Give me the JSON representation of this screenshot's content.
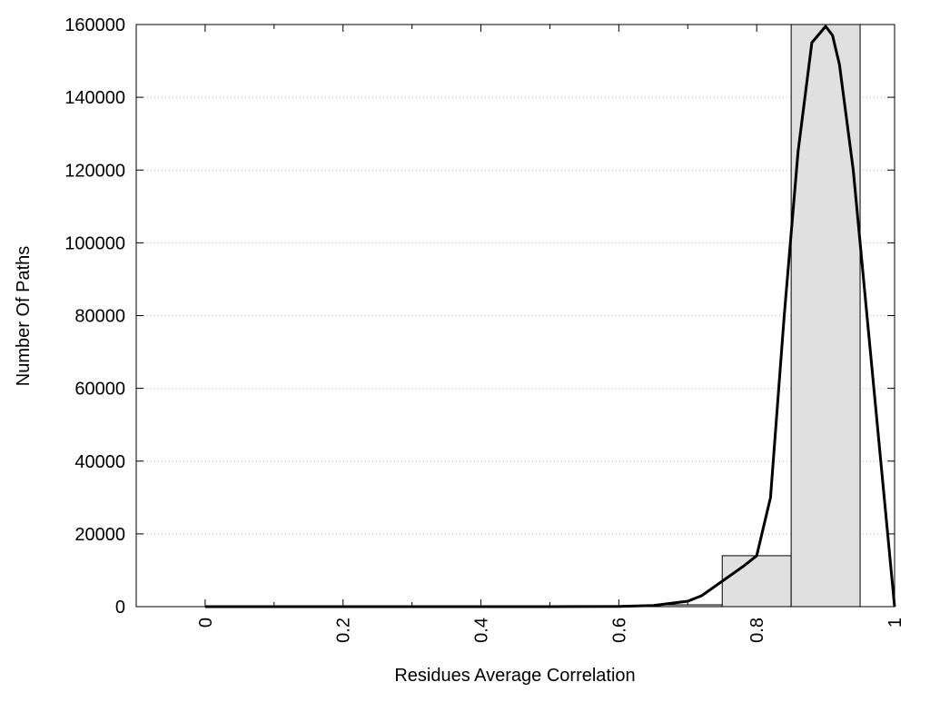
{
  "chart_data": {
    "type": "histogram",
    "x_label": "Residues Average Correlation",
    "y_label": "Number Of Paths",
    "bins": [
      0.65,
      0.75,
      0.85,
      0.95
    ],
    "counts": [
      500,
      14000,
      160000
    ],
    "color": "#e0e0e0",
    "curve": {
      "color": "#000000",
      "x": [
        0,
        0.1,
        0.2,
        0.3,
        0.4,
        0.5,
        0.6,
        0.65,
        0.7,
        0.72,
        0.75,
        0.78,
        0.8,
        0.82,
        0.84,
        0.86,
        0.88,
        0.9,
        0.91,
        0.92,
        0.94,
        0.96,
        0.98,
        1
      ],
      "values": [
        0,
        0,
        0,
        0,
        0,
        0,
        50,
        300,
        1500,
        3000,
        7000,
        11000,
        14000,
        30000,
        80000,
        125000,
        155000,
        159500,
        157000,
        149000,
        120000,
        80000,
        40000,
        0
      ]
    },
    "xlim": [
      -0.1,
      1
    ],
    "xticks": [
      0,
      0.2,
      0.4,
      0.6,
      0.8,
      1
    ],
    "xminor": [
      0.1,
      0.3,
      0.5,
      0.7,
      0.9
    ],
    "ylim": [
      0,
      160000
    ],
    "yticks": [
      0,
      20000,
      40000,
      60000,
      80000,
      100000,
      120000,
      140000,
      160000
    ],
    "grid": true
  }
}
